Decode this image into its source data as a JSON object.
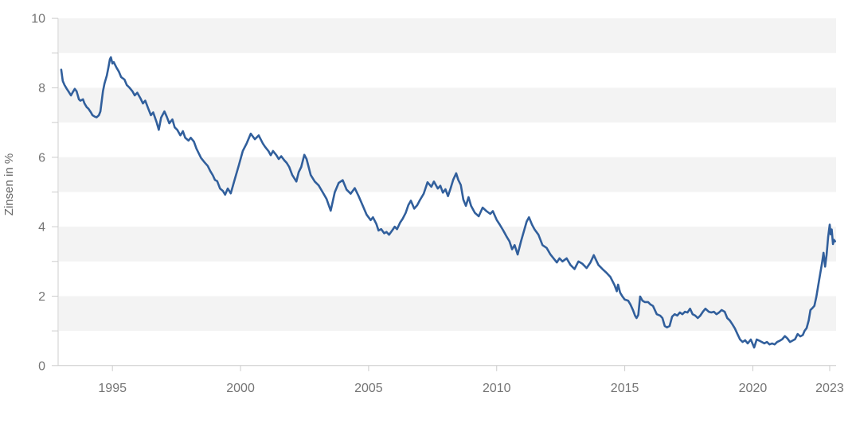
{
  "chart_data": {
    "type": "line",
    "title": "",
    "xlabel": "",
    "ylabel": "Zinsen in %",
    "legend": "none",
    "grid": "none (alternating shaded horizontal bands)",
    "x_range": [
      1992.88,
      2023.25
    ],
    "y_range": [
      0,
      10
    ],
    "x_ticks": [
      1995,
      2000,
      2005,
      2010,
      2015,
      2020,
      2023
    ],
    "y_ticks_labeled": [
      0,
      2,
      4,
      6,
      8,
      10
    ],
    "y_ticks_minor": [
      1,
      3,
      5,
      7,
      9
    ],
    "plot_bands": [
      [
        9,
        10
      ],
      [
        7,
        8
      ],
      [
        5,
        6
      ],
      [
        3,
        4
      ],
      [
        1,
        2
      ]
    ],
    "colors": {
      "line": "#315f9c",
      "band": "#f3f3f3",
      "axis": "#cccccc",
      "tick": "#cccccc",
      "tick_label": "#757575",
      "axis_label": "#666666",
      "background": "#ffffff"
    },
    "series": [
      {
        "name": "Zinsen in %",
        "color": "#315f9c",
        "points": [
          [
            1993.0,
            8.52
          ],
          [
            1993.06,
            8.2
          ],
          [
            1993.13,
            8.08
          ],
          [
            1993.22,
            7.97
          ],
          [
            1993.28,
            7.9
          ],
          [
            1993.38,
            7.78
          ],
          [
            1993.44,
            7.86
          ],
          [
            1993.53,
            7.97
          ],
          [
            1993.6,
            7.9
          ],
          [
            1993.69,
            7.67
          ],
          [
            1993.75,
            7.63
          ],
          [
            1993.85,
            7.67
          ],
          [
            1993.91,
            7.55
          ],
          [
            1994.0,
            7.44
          ],
          [
            1994.06,
            7.4
          ],
          [
            1994.16,
            7.29
          ],
          [
            1994.22,
            7.21
          ],
          [
            1994.31,
            7.17
          ],
          [
            1994.38,
            7.15
          ],
          [
            1994.47,
            7.21
          ],
          [
            1994.53,
            7.32
          ],
          [
            1994.63,
            7.9
          ],
          [
            1994.69,
            8.12
          ],
          [
            1994.78,
            8.35
          ],
          [
            1994.84,
            8.58
          ],
          [
            1994.9,
            8.82
          ],
          [
            1994.94,
            8.88
          ],
          [
            1995.0,
            8.7
          ],
          [
            1995.05,
            8.74
          ],
          [
            1995.16,
            8.58
          ],
          [
            1995.25,
            8.47
          ],
          [
            1995.34,
            8.31
          ],
          [
            1995.47,
            8.24
          ],
          [
            1995.56,
            8.08
          ],
          [
            1995.66,
            8.01
          ],
          [
            1995.78,
            7.9
          ],
          [
            1995.87,
            7.78
          ],
          [
            1995.97,
            7.86
          ],
          [
            1996.09,
            7.7
          ],
          [
            1996.19,
            7.55
          ],
          [
            1996.28,
            7.63
          ],
          [
            1996.4,
            7.4
          ],
          [
            1996.5,
            7.21
          ],
          [
            1996.59,
            7.29
          ],
          [
            1996.72,
            7.02
          ],
          [
            1996.81,
            6.79
          ],
          [
            1996.9,
            7.14
          ],
          [
            1997.03,
            7.32
          ],
          [
            1997.12,
            7.17
          ],
          [
            1997.22,
            6.98
          ],
          [
            1997.34,
            7.09
          ],
          [
            1997.43,
            6.86
          ],
          [
            1997.53,
            6.79
          ],
          [
            1997.65,
            6.63
          ],
          [
            1997.75,
            6.75
          ],
          [
            1997.84,
            6.56
          ],
          [
            1997.97,
            6.48
          ],
          [
            1998.06,
            6.56
          ],
          [
            1998.18,
            6.45
          ],
          [
            1998.28,
            6.25
          ],
          [
            1998.46,
            5.98
          ],
          [
            1998.6,
            5.85
          ],
          [
            1998.72,
            5.75
          ],
          [
            1998.82,
            5.6
          ],
          [
            1998.92,
            5.48
          ],
          [
            1999.0,
            5.35
          ],
          [
            1999.09,
            5.31
          ],
          [
            1999.2,
            5.1
          ],
          [
            1999.31,
            5.03
          ],
          [
            1999.4,
            4.92
          ],
          [
            1999.5,
            5.1
          ],
          [
            1999.62,
            4.96
          ],
          [
            1999.78,
            5.38
          ],
          [
            1999.93,
            5.76
          ],
          [
            2000.09,
            6.18
          ],
          [
            2000.24,
            6.4
          ],
          [
            2000.4,
            6.68
          ],
          [
            2000.56,
            6.52
          ],
          [
            2000.71,
            6.63
          ],
          [
            2000.87,
            6.4
          ],
          [
            2000.96,
            6.3
          ],
          [
            2001.09,
            6.18
          ],
          [
            2001.18,
            6.06
          ],
          [
            2001.27,
            6.18
          ],
          [
            2001.4,
            6.06
          ],
          [
            2001.49,
            5.95
          ],
          [
            2001.59,
            6.03
          ],
          [
            2001.71,
            5.91
          ],
          [
            2001.8,
            5.84
          ],
          [
            2001.9,
            5.72
          ],
          [
            2002.02,
            5.49
          ],
          [
            2002.18,
            5.3
          ],
          [
            2002.27,
            5.57
          ],
          [
            2002.37,
            5.72
          ],
          [
            2002.49,
            6.07
          ],
          [
            2002.58,
            5.95
          ],
          [
            2002.74,
            5.49
          ],
          [
            2002.9,
            5.3
          ],
          [
            2003.05,
            5.19
          ],
          [
            2003.21,
            4.99
          ],
          [
            2003.36,
            4.8
          ],
          [
            2003.52,
            4.46
          ],
          [
            2003.68,
            4.99
          ],
          [
            2003.83,
            5.26
          ],
          [
            2003.99,
            5.34
          ],
          [
            2004.14,
            5.07
          ],
          [
            2004.3,
            4.95
          ],
          [
            2004.46,
            5.11
          ],
          [
            2004.61,
            4.88
          ],
          [
            2004.77,
            4.61
          ],
          [
            2004.92,
            4.35
          ],
          [
            2005.08,
            4.19
          ],
          [
            2005.17,
            4.27
          ],
          [
            2005.3,
            4.08
          ],
          [
            2005.39,
            3.89
          ],
          [
            2005.49,
            3.93
          ],
          [
            2005.61,
            3.81
          ],
          [
            2005.7,
            3.85
          ],
          [
            2005.8,
            3.77
          ],
          [
            2005.92,
            3.89
          ],
          [
            2006.02,
            4.0
          ],
          [
            2006.11,
            3.93
          ],
          [
            2006.23,
            4.12
          ],
          [
            2006.33,
            4.23
          ],
          [
            2006.45,
            4.4
          ],
          [
            2006.55,
            4.62
          ],
          [
            2006.65,
            4.75
          ],
          [
            2006.78,
            4.52
          ],
          [
            2006.9,
            4.62
          ],
          [
            2007.0,
            4.76
          ],
          [
            2007.15,
            4.95
          ],
          [
            2007.3,
            5.28
          ],
          [
            2007.45,
            5.15
          ],
          [
            2007.55,
            5.3
          ],
          [
            2007.7,
            5.1
          ],
          [
            2007.8,
            5.18
          ],
          [
            2007.9,
            4.98
          ],
          [
            2008.0,
            5.08
          ],
          [
            2008.1,
            4.88
          ],
          [
            2008.2,
            5.1
          ],
          [
            2008.3,
            5.35
          ],
          [
            2008.42,
            5.54
          ],
          [
            2008.5,
            5.35
          ],
          [
            2008.6,
            5.2
          ],
          [
            2008.7,
            4.78
          ],
          [
            2008.8,
            4.6
          ],
          [
            2008.9,
            4.85
          ],
          [
            2009.0,
            4.6
          ],
          [
            2009.15,
            4.4
          ],
          [
            2009.3,
            4.3
          ],
          [
            2009.45,
            4.55
          ],
          [
            2009.6,
            4.45
          ],
          [
            2009.75,
            4.37
          ],
          [
            2009.85,
            4.45
          ],
          [
            2010.0,
            4.2
          ],
          [
            2010.12,
            4.06
          ],
          [
            2010.25,
            3.9
          ],
          [
            2010.4,
            3.7
          ],
          [
            2010.5,
            3.58
          ],
          [
            2010.6,
            3.35
          ],
          [
            2010.7,
            3.47
          ],
          [
            2010.82,
            3.2
          ],
          [
            2010.95,
            3.58
          ],
          [
            2011.07,
            3.89
          ],
          [
            2011.17,
            4.15
          ],
          [
            2011.26,
            4.27
          ],
          [
            2011.38,
            4.06
          ],
          [
            2011.48,
            3.92
          ],
          [
            2011.63,
            3.77
          ],
          [
            2011.79,
            3.47
          ],
          [
            2011.95,
            3.39
          ],
          [
            2012.1,
            3.2
          ],
          [
            2012.26,
            3.05
          ],
          [
            2012.35,
            2.97
          ],
          [
            2012.45,
            3.09
          ],
          [
            2012.57,
            3.0
          ],
          [
            2012.73,
            3.09
          ],
          [
            2012.88,
            2.9
          ],
          [
            2013.04,
            2.78
          ],
          [
            2013.19,
            3.0
          ],
          [
            2013.35,
            2.93
          ],
          [
            2013.51,
            2.81
          ],
          [
            2013.66,
            2.97
          ],
          [
            2013.79,
            3.18
          ],
          [
            2013.97,
            2.9
          ],
          [
            2014.13,
            2.78
          ],
          [
            2014.29,
            2.67
          ],
          [
            2014.44,
            2.55
          ],
          [
            2014.6,
            2.32
          ],
          [
            2014.69,
            2.14
          ],
          [
            2014.74,
            2.33
          ],
          [
            2014.82,
            2.1
          ],
          [
            2014.91,
            1.99
          ],
          [
            2015.0,
            1.9
          ],
          [
            2015.13,
            1.87
          ],
          [
            2015.22,
            1.76
          ],
          [
            2015.32,
            1.6
          ],
          [
            2015.4,
            1.44
          ],
          [
            2015.46,
            1.37
          ],
          [
            2015.53,
            1.46
          ],
          [
            2015.6,
            1.99
          ],
          [
            2015.69,
            1.87
          ],
          [
            2015.78,
            1.83
          ],
          [
            2015.91,
            1.83
          ],
          [
            2016.0,
            1.76
          ],
          [
            2016.1,
            1.72
          ],
          [
            2016.25,
            1.48
          ],
          [
            2016.38,
            1.44
          ],
          [
            2016.47,
            1.37
          ],
          [
            2016.56,
            1.14
          ],
          [
            2016.65,
            1.1
          ],
          [
            2016.75,
            1.14
          ],
          [
            2016.85,
            1.41
          ],
          [
            2016.95,
            1.48
          ],
          [
            2017.05,
            1.44
          ],
          [
            2017.15,
            1.53
          ],
          [
            2017.25,
            1.48
          ],
          [
            2017.35,
            1.55
          ],
          [
            2017.45,
            1.53
          ],
          [
            2017.55,
            1.64
          ],
          [
            2017.65,
            1.48
          ],
          [
            2017.75,
            1.44
          ],
          [
            2017.85,
            1.37
          ],
          [
            2017.95,
            1.44
          ],
          [
            2018.05,
            1.55
          ],
          [
            2018.15,
            1.64
          ],
          [
            2018.28,
            1.55
          ],
          [
            2018.38,
            1.53
          ],
          [
            2018.48,
            1.55
          ],
          [
            2018.58,
            1.48
          ],
          [
            2018.68,
            1.53
          ],
          [
            2018.78,
            1.6
          ],
          [
            2018.9,
            1.55
          ],
          [
            2019.0,
            1.37
          ],
          [
            2019.1,
            1.3
          ],
          [
            2019.2,
            1.19
          ],
          [
            2019.3,
            1.07
          ],
          [
            2019.4,
            0.91
          ],
          [
            2019.5,
            0.75
          ],
          [
            2019.6,
            0.68
          ],
          [
            2019.7,
            0.73
          ],
          [
            2019.8,
            0.64
          ],
          [
            2019.92,
            0.75
          ],
          [
            2020.05,
            0.52
          ],
          [
            2020.15,
            0.75
          ],
          [
            2020.25,
            0.72
          ],
          [
            2020.35,
            0.68
          ],
          [
            2020.45,
            0.64
          ],
          [
            2020.55,
            0.68
          ],
          [
            2020.65,
            0.61
          ],
          [
            2020.75,
            0.64
          ],
          [
            2020.85,
            0.61
          ],
          [
            2020.95,
            0.68
          ],
          [
            2021.06,
            0.72
          ],
          [
            2021.15,
            0.76
          ],
          [
            2021.25,
            0.85
          ],
          [
            2021.35,
            0.78
          ],
          [
            2021.45,
            0.68
          ],
          [
            2021.55,
            0.72
          ],
          [
            2021.65,
            0.76
          ],
          [
            2021.75,
            0.91
          ],
          [
            2021.85,
            0.84
          ],
          [
            2021.95,
            0.88
          ],
          [
            2022.02,
            1.0
          ],
          [
            2022.1,
            1.08
          ],
          [
            2022.18,
            1.3
          ],
          [
            2022.25,
            1.6
          ],
          [
            2022.33,
            1.66
          ],
          [
            2022.4,
            1.72
          ],
          [
            2022.48,
            1.98
          ],
          [
            2022.55,
            2.3
          ],
          [
            2022.62,
            2.6
          ],
          [
            2022.7,
            2.95
          ],
          [
            2022.76,
            3.25
          ],
          [
            2022.82,
            2.85
          ],
          [
            2022.88,
            3.2
          ],
          [
            2022.94,
            3.7
          ],
          [
            2023.0,
            4.06
          ],
          [
            2023.04,
            3.78
          ],
          [
            2023.08,
            3.92
          ],
          [
            2023.13,
            3.5
          ],
          [
            2023.17,
            3.62
          ],
          [
            2023.21,
            3.58
          ]
        ]
      }
    ]
  }
}
